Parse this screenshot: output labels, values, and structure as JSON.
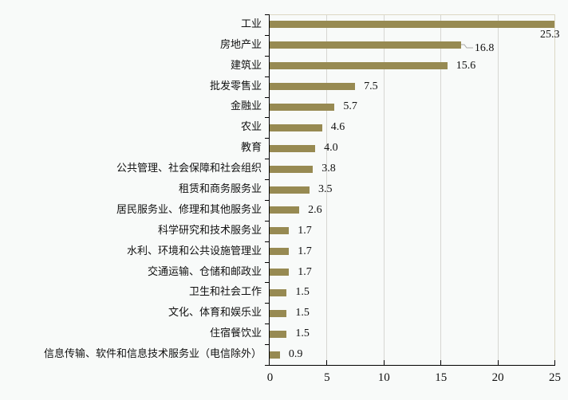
{
  "chart_data": {
    "type": "bar",
    "orientation": "horizontal",
    "title": "",
    "xlabel": "",
    "ylabel": "",
    "xlim": [
      0,
      25
    ],
    "xticks": [
      0,
      5,
      10,
      15,
      20,
      25
    ],
    "grid": "vertical",
    "legend": "none",
    "bar_color": "#978a52",
    "categories": [
      "工业",
      "房地产业",
      "建筑业",
      "批发零售业",
      "金融业",
      "农业",
      "教育",
      "公共管理、社会保障和社会组织",
      "租赁和商务服务业",
      "居民服务业、修理和其他服务业",
      "科学研究和技术服务业",
      "水利、环境和公共设施管理业",
      "交通运输、仓储和邮政业",
      "卫生和社会工作",
      "文化、体育和娱乐业",
      "住宿餐饮业",
      "信息传输、软件和信息技术服务业（电信除外）"
    ],
    "values": [
      25.3,
      16.8,
      15.6,
      7.5,
      5.7,
      4.6,
      4.0,
      3.8,
      3.5,
      2.6,
      1.7,
      1.7,
      1.7,
      1.5,
      1.5,
      1.5,
      0.9
    ],
    "value_labels": [
      "25.3",
      "16.8",
      "15.6",
      "7.5",
      "5.7",
      "4.6",
      "4.0",
      "3.8",
      "3.5",
      "2.6",
      "1.7",
      "1.7",
      "1.7",
      "1.5",
      "1.5",
      "1.5",
      "0.9"
    ]
  }
}
